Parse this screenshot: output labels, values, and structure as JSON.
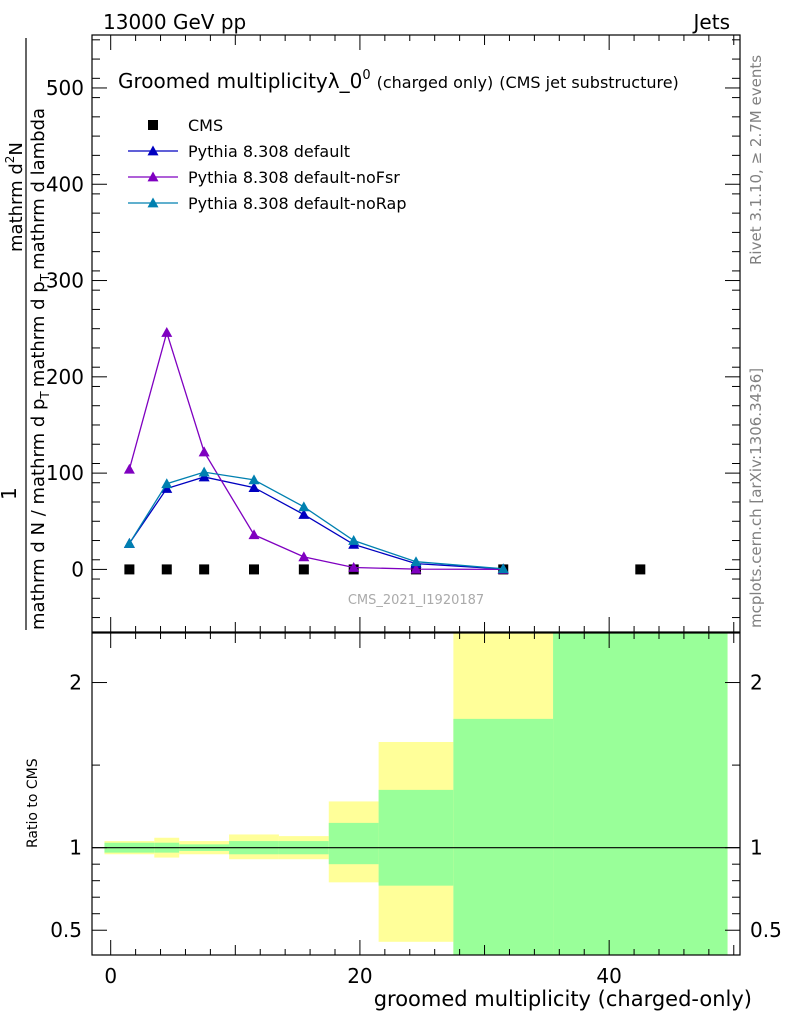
{
  "header": {
    "energy_label": "13000 GeV pp",
    "category_label": "Jets"
  },
  "plot_title": {
    "main": "Groomed multiplicityλ_0",
    "superscript": "0",
    "charged": "(charged only)",
    "experiment": "(CMS jet substructure)"
  },
  "side_labels": {
    "rivet": "Rivet 3.1.10, ≥ 2.7M events",
    "mcplots": "mcplots.cern.ch [arXiv:1306.3436]"
  },
  "watermark": "CMS_2021_I1920187",
  "y_axis_label": {
    "one": "1",
    "numerator_a": "mathrm d",
    "numerator_sup": "2",
    "numerator_b": "N",
    "denominator_a": "mathrm d N / mathrm d p",
    "denominator_a_sub": "T",
    "denominator_b": "mathrm d p",
    "denominator_b_sub": "T",
    "denominator_c": "mathrm d lambda"
  },
  "ratio_y_label": "Ratio to CMS",
  "x_axis_label": "groomed multiplicity (charged-only)",
  "colors": {
    "cms": "#000000",
    "default": "#0000c0",
    "noFsr": "#7f00c0",
    "noRap": "#0080b0",
    "band_yellow": "#ffff99",
    "band_green": "#99ff99"
  },
  "chart_data": {
    "type": "line",
    "xlim": [
      -1.5,
      50.5
    ],
    "main": {
      "ylim": [
        -65,
        555
      ],
      "yticks": [
        0,
        100,
        200,
        300,
        400,
        500
      ],
      "series": [
        {
          "name": "CMS",
          "marker": "square",
          "x": [
            1.5,
            4.5,
            7.5,
            11.5,
            15.5,
            19.5,
            24.5,
            31.5,
            42.5
          ],
          "values": [
            0,
            0,
            0,
            0,
            0,
            0,
            0,
            0,
            0
          ]
        },
        {
          "name": "Pythia 8.308 default",
          "marker": "triangle",
          "x": [
            1.5,
            4.5,
            7.5,
            11.5,
            15.5,
            19.5,
            24.5,
            31.5
          ],
          "values": [
            27,
            84,
            96,
            85,
            57,
            26,
            6,
            0.5
          ]
        },
        {
          "name": "Pythia 8.308 default-noFsr",
          "marker": "triangle",
          "x": [
            1.5,
            4.5,
            7.5,
            11.5,
            15.5,
            19.5,
            24.5,
            31.5
          ],
          "values": [
            104,
            246,
            122,
            36,
            13,
            2,
            0.3,
            0
          ]
        },
        {
          "name": "Pythia 8.308 default-noRap",
          "marker": "triangle",
          "x": [
            1.5,
            4.5,
            7.5,
            11.5,
            15.5,
            19.5,
            24.5,
            31.5
          ],
          "values": [
            27,
            89,
            101,
            93,
            65,
            30,
            8,
            0.7
          ]
        }
      ]
    },
    "ratio": {
      "ylim": [
        0.35,
        2.3
      ],
      "yticks": [
        0.5,
        1,
        2
      ],
      "xticks": [
        0,
        20,
        40
      ],
      "reference": 1,
      "bands": [
        {
          "x": [
            -0.5,
            3.5
          ],
          "yellow": [
            0.96,
            1.04
          ],
          "green": [
            0.97,
            1.03
          ]
        },
        {
          "x": [
            3.5,
            5.5
          ],
          "yellow": [
            0.94,
            1.06
          ],
          "green": [
            0.97,
            1.03
          ]
        },
        {
          "x": [
            5.5,
            9.5
          ],
          "yellow": [
            0.96,
            1.04
          ],
          "green": [
            0.98,
            1.02
          ]
        },
        {
          "x": [
            9.5,
            13.5
          ],
          "yellow": [
            0.93,
            1.08
          ],
          "green": [
            0.96,
            1.04
          ]
        },
        {
          "x": [
            13.5,
            17.5
          ],
          "yellow": [
            0.93,
            1.07
          ],
          "green": [
            0.96,
            1.04
          ]
        },
        {
          "x": [
            17.5,
            21.5
          ],
          "yellow": [
            0.79,
            1.28
          ],
          "green": [
            0.9,
            1.15
          ]
        },
        {
          "x": [
            21.5,
            27.5
          ],
          "yellow": [
            0.43,
            1.64
          ],
          "green": [
            0.77,
            1.35
          ]
        },
        {
          "x": [
            27.5,
            35.5
          ],
          "yellow": [
            0.35,
            2.3
          ],
          "green": [
            0.35,
            1.78
          ]
        },
        {
          "x": [
            35.5,
            49.5
          ],
          "yellow": [
            0.35,
            2.3
          ],
          "green": [
            0.35,
            2.3
          ]
        }
      ]
    }
  }
}
